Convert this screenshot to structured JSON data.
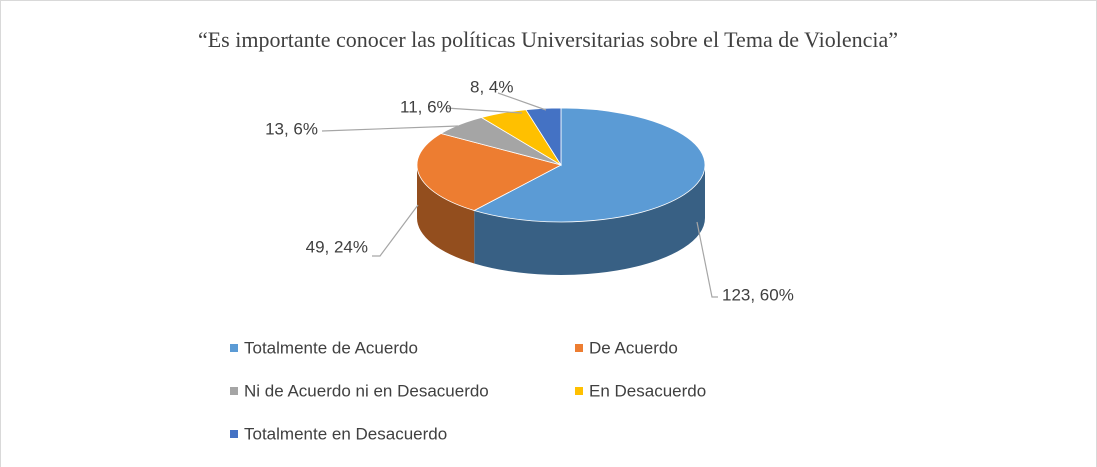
{
  "chart_data": {
    "type": "pie3d",
    "title": "“Es importante conocer las políticas Universitarias sobre el Tema de Violencia”",
    "categories": [
      "Totalmente de Acuerdo",
      "De Acuerdo",
      "Ni de Acuerdo ni en Desacuerdo",
      "En Desacuerdo",
      "Totalmente en Desacuerdo"
    ],
    "values": [
      123,
      49,
      13,
      11,
      8
    ],
    "value_labels": [
      "123, 60%",
      "49, 24%",
      "13, 6%",
      "11, 6%",
      "8, 4%"
    ],
    "colors": [
      "#5b9bd5",
      "#ed7d31",
      "#a5a5a5",
      "#ffc000",
      "#4472c4"
    ],
    "legend": "bottom"
  }
}
